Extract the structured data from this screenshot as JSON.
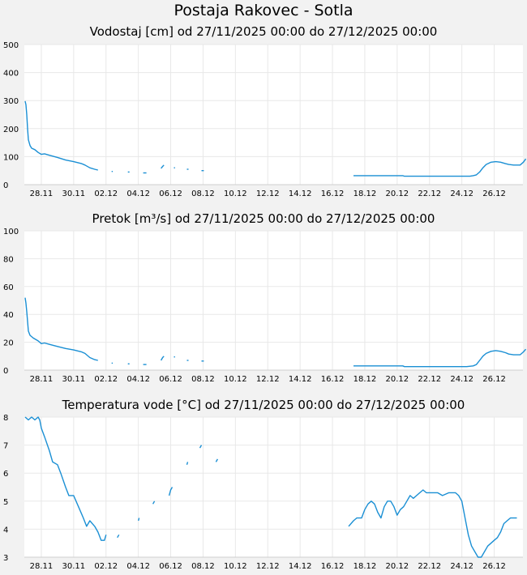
{
  "title": "Postaja Rakovec - Sotla",
  "line_color": "#1a8fd4",
  "chart_data": [
    {
      "type": "line",
      "title": "Vodostaj [cm] od 27/11/2025 00:00 do 27/12/2025 00:00",
      "ylim": [
        0,
        500
      ],
      "yticks": [
        0,
        100,
        200,
        300,
        400,
        500
      ],
      "xlim": [
        0,
        30
      ],
      "xticks": [
        1,
        3,
        5,
        7,
        9,
        11,
        13,
        15,
        17,
        19,
        21,
        23,
        25,
        27,
        29
      ],
      "xtick_labels": [
        "28.11",
        "30.11",
        "02.12",
        "04.12",
        "06.12",
        "08.12",
        "10.12",
        "12.12",
        "14.12",
        "16.12",
        "18.12",
        "20.12",
        "22.12",
        "24.12",
        "26.12"
      ],
      "grid": true,
      "segments": [
        [
          [
            0,
            298
          ],
          [
            0.05,
            285
          ],
          [
            0.1,
            250
          ],
          [
            0.15,
            200
          ],
          [
            0.2,
            160
          ],
          [
            0.3,
            140
          ],
          [
            0.4,
            130
          ],
          [
            0.6,
            125
          ],
          [
            0.8,
            115
          ],
          [
            1.0,
            108
          ],
          [
            1.2,
            110
          ],
          [
            1.5,
            105
          ],
          [
            2,
            97
          ],
          [
            2.5,
            88
          ],
          [
            3,
            82
          ],
          [
            3.5,
            75
          ],
          [
            3.7,
            70
          ],
          [
            4,
            60
          ],
          [
            4.3,
            55
          ],
          [
            4.5,
            52
          ]
        ],
        [
          [
            5.35,
            47
          ],
          [
            5.42,
            47
          ]
        ],
        [
          [
            6.35,
            45
          ],
          [
            6.45,
            45
          ]
        ],
        [
          [
            7.3,
            42
          ],
          [
            7.5,
            42
          ]
        ],
        [
          [
            8.4,
            58
          ],
          [
            8.5,
            65
          ],
          [
            8.58,
            70
          ]
        ],
        [
          [
            9.2,
            60
          ],
          [
            9.27,
            60
          ]
        ],
        [
          [
            10.0,
            55
          ],
          [
            10.1,
            55
          ]
        ],
        [
          [
            10.9,
            50
          ],
          [
            11.05,
            50
          ]
        ],
        [
          [
            20.3,
            32
          ],
          [
            23.35,
            32
          ],
          [
            23.45,
            30
          ],
          [
            27.3,
            30
          ],
          [
            27.5,
            30
          ],
          [
            27.7,
            32
          ],
          [
            27.9,
            35
          ],
          [
            28.1,
            45
          ],
          [
            28.3,
            60
          ],
          [
            28.5,
            72
          ],
          [
            28.8,
            80
          ],
          [
            29.1,
            82
          ],
          [
            29.4,
            80
          ],
          [
            29.7,
            75
          ],
          [
            29.9,
            72
          ],
          [
            30.2,
            70
          ],
          [
            30.6,
            70
          ],
          [
            30.8,
            80
          ],
          [
            30.95,
            92
          ]
        ]
      ]
    },
    {
      "type": "line",
      "title": "Pretok [m³/s] od 27/11/2025 00:00 do 27/12/2025 00:00",
      "ylim": [
        0,
        100
      ],
      "yticks": [
        0,
        20,
        40,
        60,
        80,
        100
      ],
      "xlim": [
        0,
        30
      ],
      "xticks": [
        1,
        3,
        5,
        7,
        9,
        11,
        13,
        15,
        17,
        19,
        21,
        23,
        25,
        27,
        29
      ],
      "xtick_labels": [
        "28.11",
        "30.11",
        "02.12",
        "04.12",
        "06.12",
        "08.12",
        "10.12",
        "12.12",
        "14.12",
        "16.12",
        "18.12",
        "20.12",
        "22.12",
        "24.12",
        "26.12"
      ],
      "grid": true,
      "segments": [
        [
          [
            0,
            52
          ],
          [
            0.05,
            48
          ],
          [
            0.1,
            42
          ],
          [
            0.15,
            35
          ],
          [
            0.2,
            28
          ],
          [
            0.3,
            25
          ],
          [
            0.5,
            23
          ],
          [
            0.8,
            21
          ],
          [
            1.0,
            19
          ],
          [
            1.2,
            19.5
          ],
          [
            1.5,
            18.5
          ],
          [
            2,
            17
          ],
          [
            2.5,
            15.5
          ],
          [
            3,
            14.5
          ],
          [
            3.5,
            13
          ],
          [
            3.7,
            12
          ],
          [
            4,
            9
          ],
          [
            4.3,
            7.5
          ],
          [
            4.5,
            7
          ]
        ],
        [
          [
            5.35,
            5
          ],
          [
            5.42,
            5
          ]
        ],
        [
          [
            6.35,
            4.5
          ],
          [
            6.45,
            4.5
          ]
        ],
        [
          [
            7.3,
            4
          ],
          [
            7.5,
            4
          ]
        ],
        [
          [
            8.4,
            7
          ],
          [
            8.5,
            9
          ],
          [
            8.58,
            10
          ]
        ],
        [
          [
            9.2,
            9.5
          ],
          [
            9.27,
            9.5
          ]
        ],
        [
          [
            10.0,
            7
          ],
          [
            10.1,
            7
          ]
        ],
        [
          [
            10.9,
            6.5
          ],
          [
            11.05,
            6.5
          ]
        ],
        [
          [
            20.3,
            3
          ],
          [
            23.35,
            3
          ],
          [
            23.45,
            2.5
          ],
          [
            27.3,
            2.5
          ],
          [
            27.7,
            3
          ],
          [
            27.9,
            4
          ],
          [
            28.1,
            7
          ],
          [
            28.3,
            10
          ],
          [
            28.5,
            12
          ],
          [
            28.8,
            13.5
          ],
          [
            29.1,
            14
          ],
          [
            29.4,
            13.5
          ],
          [
            29.7,
            12.5
          ],
          [
            29.9,
            11.5
          ],
          [
            30.2,
            11
          ],
          [
            30.6,
            11
          ],
          [
            30.8,
            13
          ],
          [
            30.95,
            15
          ]
        ]
      ]
    },
    {
      "type": "line",
      "title": "Temperatura vode [°C] od 27/11/2025 00:00 do 27/12/2025 00:00",
      "ylim": [
        3,
        8
      ],
      "yticks": [
        3,
        4,
        5,
        6,
        7,
        8
      ],
      "xlim": [
        0,
        30
      ],
      "xticks": [
        1,
        3,
        5,
        7,
        9,
        11,
        13,
        15,
        17,
        19,
        21,
        23,
        25,
        27,
        29
      ],
      "xtick_labels": [
        "28.11",
        "30.11",
        "02.12",
        "04.12",
        "06.12",
        "08.12",
        "10.12",
        "12.12",
        "14.12",
        "16.12",
        "18.12",
        "20.12",
        "22.12",
        "24.12",
        "26.12"
      ],
      "grid": true,
      "segments": [
        [
          [
            0,
            8
          ],
          [
            0.2,
            7.9
          ],
          [
            0.4,
            8
          ],
          [
            0.6,
            7.9
          ],
          [
            0.8,
            8
          ],
          [
            0.9,
            7.9
          ],
          [
            1.0,
            7.6
          ],
          [
            1.2,
            7.3
          ],
          [
            1.5,
            6.8
          ],
          [
            1.7,
            6.4
          ],
          [
            2.0,
            6.3
          ],
          [
            2.2,
            6.0
          ],
          [
            2.5,
            5.5
          ],
          [
            2.7,
            5.2
          ],
          [
            3.0,
            5.2
          ],
          [
            3.3,
            4.8
          ],
          [
            3.6,
            4.4
          ],
          [
            3.8,
            4.1
          ],
          [
            4.0,
            4.3
          ],
          [
            4.3,
            4.1
          ],
          [
            4.5,
            3.9
          ],
          [
            4.7,
            3.6
          ],
          [
            4.9,
            3.6
          ],
          [
            5.0,
            3.8
          ]
        ],
        [
          [
            5.7,
            3.7
          ],
          [
            5.8,
            3.8
          ]
        ],
        [
          [
            7.0,
            4.3
          ],
          [
            7.05,
            4.4
          ]
        ],
        [
          [
            7.9,
            4.9
          ],
          [
            8.0,
            5.0
          ]
        ],
        [
          [
            8.9,
            5.2
          ],
          [
            9.0,
            5.4
          ],
          [
            9.1,
            5.5
          ]
        ],
        [
          [
            10.0,
            6.3
          ],
          [
            10.05,
            6.4
          ]
        ],
        [
          [
            10.8,
            6.9
          ],
          [
            10.9,
            7.0
          ]
        ],
        [
          [
            11.8,
            6.4
          ],
          [
            11.9,
            6.5
          ]
        ],
        [
          [
            20.0,
            4.1
          ],
          [
            20.3,
            4.3
          ],
          [
            20.5,
            4.4
          ],
          [
            20.8,
            4.4
          ],
          [
            21.0,
            4.7
          ],
          [
            21.2,
            4.9
          ],
          [
            21.4,
            5.0
          ],
          [
            21.6,
            4.9
          ],
          [
            21.8,
            4.6
          ],
          [
            22.0,
            4.4
          ],
          [
            22.2,
            4.8
          ],
          [
            22.4,
            5.0
          ],
          [
            22.6,
            5.0
          ],
          [
            22.8,
            4.8
          ],
          [
            23.0,
            4.5
          ],
          [
            23.2,
            4.7
          ],
          [
            23.4,
            4.8
          ],
          [
            23.6,
            5.0
          ],
          [
            23.8,
            5.2
          ],
          [
            24.0,
            5.1
          ],
          [
            24.2,
            5.2
          ],
          [
            24.4,
            5.3
          ],
          [
            24.6,
            5.4
          ],
          [
            24.8,
            5.3
          ],
          [
            25.5,
            5.3
          ],
          [
            25.8,
            5.2
          ],
          [
            26.2,
            5.3
          ],
          [
            26.6,
            5.3
          ],
          [
            26.8,
            5.2
          ],
          [
            27.0,
            5.0
          ],
          [
            27.2,
            4.4
          ],
          [
            27.4,
            3.8
          ],
          [
            27.6,
            3.4
          ],
          [
            27.8,
            3.2
          ],
          [
            28.0,
            3.0
          ],
          [
            28.2,
            3.0
          ],
          [
            28.4,
            3.2
          ],
          [
            28.6,
            3.4
          ],
          [
            28.8,
            3.5
          ],
          [
            29.0,
            3.6
          ],
          [
            29.2,
            3.7
          ],
          [
            29.4,
            3.9
          ],
          [
            29.6,
            4.2
          ],
          [
            29.8,
            4.3
          ],
          [
            30.0,
            4.4
          ],
          [
            30.4,
            4.4
          ]
        ]
      ]
    }
  ]
}
